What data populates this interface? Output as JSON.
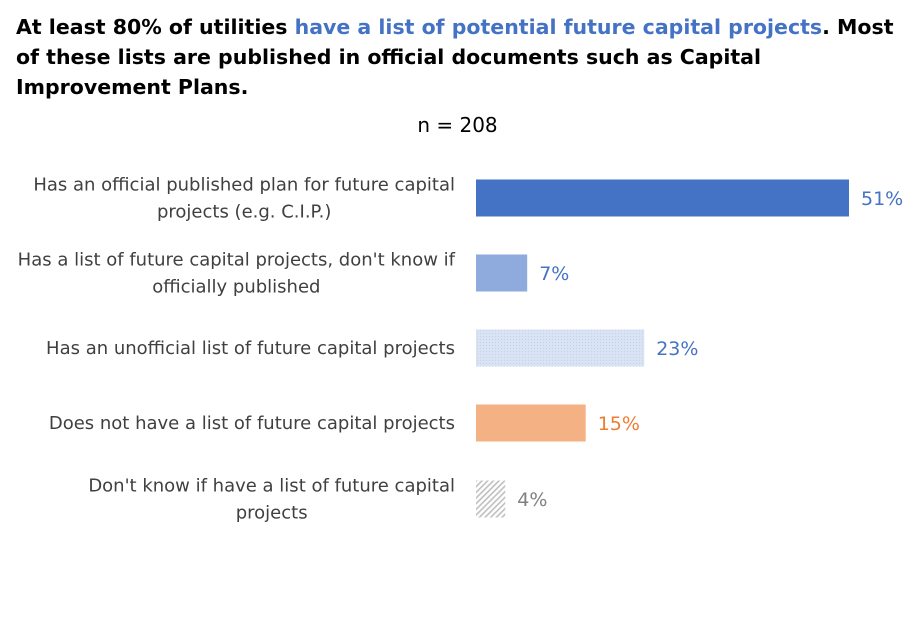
{
  "headline": {
    "part1": "At least 80% of utilities ",
    "highlight": "have a list of potential future capital projects",
    "part2": ". Most of these lists are published in official documents such as Capital Improvement Plans."
  },
  "colors": {
    "accent": "#4472c4",
    "text": "#000000",
    "label": "#404040"
  },
  "chart_data": {
    "type": "bar",
    "orientation": "horizontal",
    "subtitle": "n = 208",
    "categories": [
      [
        "Has an official published plan for future capital",
        "projects (e.g. C.I.P.)"
      ],
      [
        "Has a list of future capital projects, don't know if",
        "officially published"
      ],
      [
        "Has an unofficial list of future capital projects"
      ],
      [
        "Does not have a list of future capital projects"
      ],
      [
        "Don't know if have a list of future capital",
        "projects"
      ]
    ],
    "values": [
      51,
      7,
      23,
      15,
      4
    ],
    "value_labels": [
      "51%",
      "7%",
      "23%",
      "15%",
      "4%"
    ],
    "bar_colors": [
      "#4472c4",
      "#8faadc",
      "#dae3f3",
      "#f4b183",
      "#d9d9d9"
    ],
    "bar_patterns": [
      "solid",
      "solid",
      "dotted",
      "solid",
      "hatched"
    ],
    "label_colors": [
      "#4472c4",
      "#4472c4",
      "#4472c4",
      "#ed7d31",
      "#808080"
    ],
    "xlim": [
      0,
      51
    ],
    "grid": false,
    "legend": "none"
  }
}
